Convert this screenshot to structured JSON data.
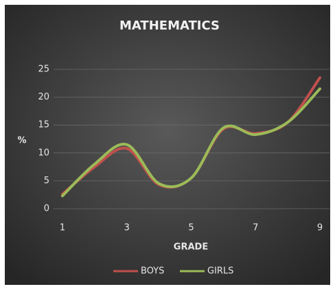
{
  "chart_data": {
    "type": "line",
    "title": "MATHEMATICS",
    "x_label": "GRADE",
    "y_label": "%",
    "x": [
      1,
      2,
      3,
      4,
      5,
      6,
      7,
      8,
      9
    ],
    "series": [
      {
        "name": "BOYS",
        "color": "#c0504d",
        "values": [
          2.6,
          7.5,
          10.8,
          4.3,
          5.5,
          14.3,
          13.5,
          15.5,
          23.5
        ]
      },
      {
        "name": "GIRLS",
        "color": "#9bbb59",
        "values": [
          2.3,
          8,
          11.5,
          4.5,
          5.5,
          14.5,
          13.3,
          15.5,
          21.5
        ]
      }
    ],
    "xlim": [
      1,
      9
    ],
    "xticks": [
      1,
      3,
      5,
      7,
      9
    ],
    "ylim": [
      0,
      25
    ],
    "yticks": [
      0,
      5,
      10,
      15,
      20,
      25
    ],
    "grid": true,
    "smooth": true,
    "legend": "bottom"
  }
}
